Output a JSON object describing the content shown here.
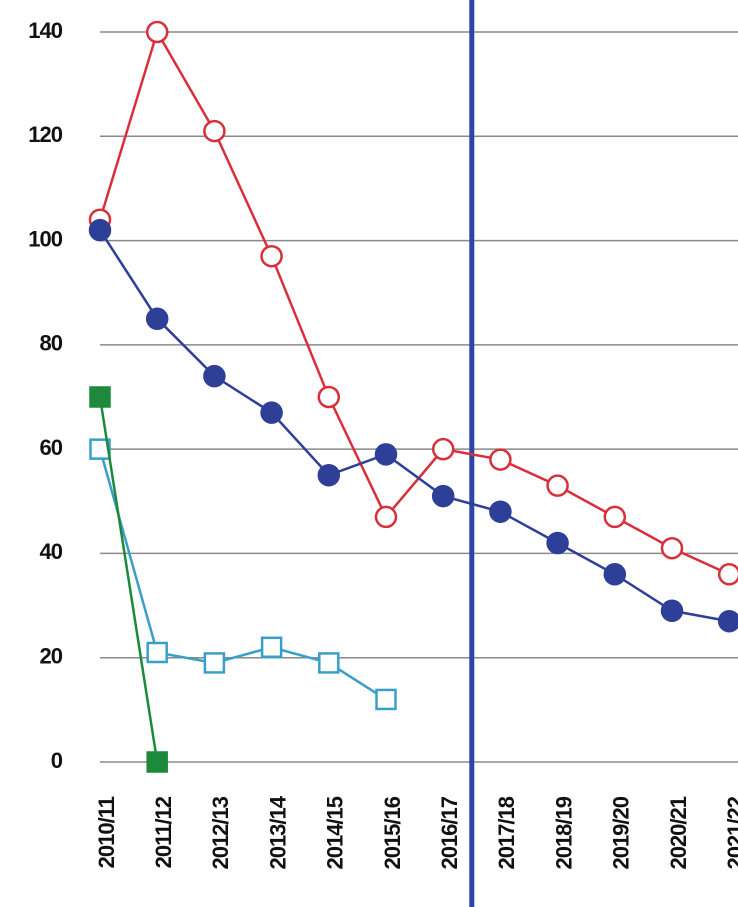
{
  "chart_data": {
    "type": "line",
    "categories": [
      "2010/11",
      "2011/12",
      "2012/13",
      "2013/14",
      "2014/15",
      "2015/16",
      "2016/17",
      "2017/18",
      "2018/19",
      "2019/20",
      "2020/21",
      "2021/22"
    ],
    "series": [
      {
        "color": "#d8303a",
        "marker": "open-circle",
        "values": [
          104,
          140,
          121,
          97,
          70,
          47,
          60,
          58,
          53,
          47,
          41,
          36
        ]
      },
      {
        "color": "#2e3f98",
        "marker": "filled-circle",
        "values": [
          102,
          85,
          74,
          67,
          55,
          59,
          51,
          48,
          42,
          36,
          29,
          27
        ]
      },
      {
        "color": "#3a9fc8",
        "marker": "open-square",
        "values": [
          60,
          21,
          19,
          22,
          19,
          12,
          null,
          null,
          null,
          null,
          null,
          null
        ]
      },
      {
        "color": "#1d8a3b",
        "marker": "filled-square",
        "values": [
          70,
          0,
          null,
          null,
          null,
          null,
          null,
          null,
          null,
          null,
          null,
          null
        ]
      }
    ],
    "ylim": [
      0,
      140
    ],
    "yticks": [
      0,
      20,
      40,
      60,
      80,
      100,
      120,
      140
    ],
    "grid": true
  }
}
